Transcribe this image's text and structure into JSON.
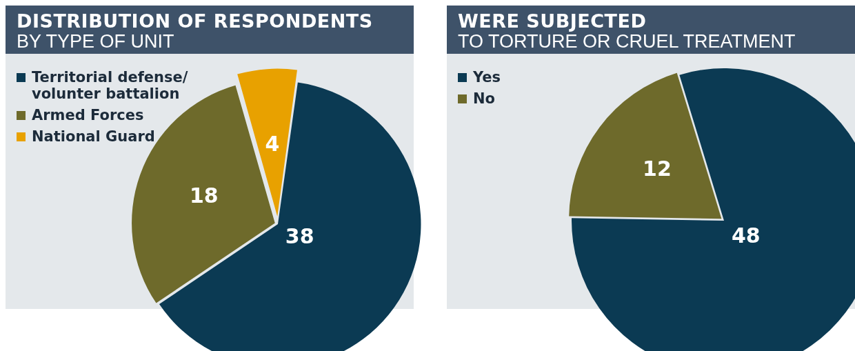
{
  "chart_data": [
    {
      "type": "pie",
      "title": "DISTRIBUTION OF RESPONDENTS",
      "subtitle": "BY TYPE OF UNIT",
      "categories": [
        "Territorial defense/ volunter battalion",
        "Armed Forces",
        "National Guard"
      ],
      "values": [
        38,
        18,
        4
      ],
      "colors": [
        "#0b3a53",
        "#6e6a2b",
        "#e8a100"
      ],
      "legend": "top left",
      "data_labels": true
    },
    {
      "type": "pie",
      "title": "WERE SUBJECTED",
      "subtitle": "TO TORTURE OR CRUEL TREATMENT",
      "categories": [
        "Yes",
        "No"
      ],
      "values": [
        48,
        12
      ],
      "colors": [
        "#0b3a53",
        "#6e6a2b"
      ],
      "legend": "top left",
      "data_labels": true
    }
  ]
}
